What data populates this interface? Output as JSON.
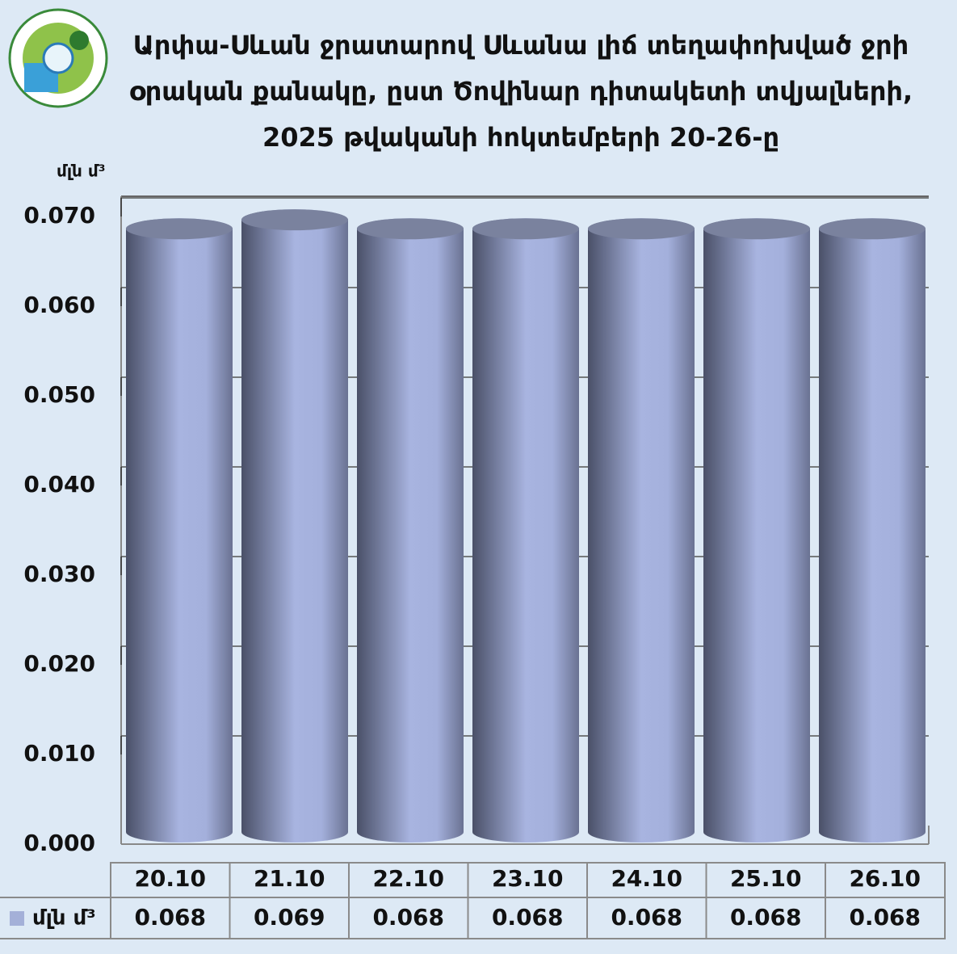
{
  "chart_data": {
    "type": "bar",
    "title": "Արփա-Սևան ջրատարով Սևանա լիճ տեղափոխված ջրի օրական քանակը, ըստ Ծովինար դիտակետի տվյալների, 2025 թվականի հոկտեմբերի 20-26-ը",
    "y_label": "մլն մ³",
    "categories": [
      "20.10",
      "21.10",
      "22.10",
      "23.10",
      "24.10",
      "25.10",
      "26.10"
    ],
    "series": [
      {
        "name": "մլն մ³",
        "color": "#a4b0d8",
        "values": [
          0.068,
          0.069,
          0.068,
          0.068,
          0.068,
          0.068,
          0.068
        ]
      }
    ],
    "ylim": [
      0,
      0.07
    ],
    "yticks": [
      {
        "value": 0,
        "label": "0.000"
      },
      {
        "value": 0.01,
        "label": "0.010"
      },
      {
        "value": 0.02,
        "label": "0.020"
      },
      {
        "value": 0.03,
        "label": "0.030"
      },
      {
        "value": 0.04,
        "label": "0.040"
      },
      {
        "value": 0.05,
        "label": "0.050"
      },
      {
        "value": 0.06,
        "label": "0.060"
      },
      {
        "value": 0.07,
        "label": "0.070"
      }
    ],
    "grid": true
  }
}
